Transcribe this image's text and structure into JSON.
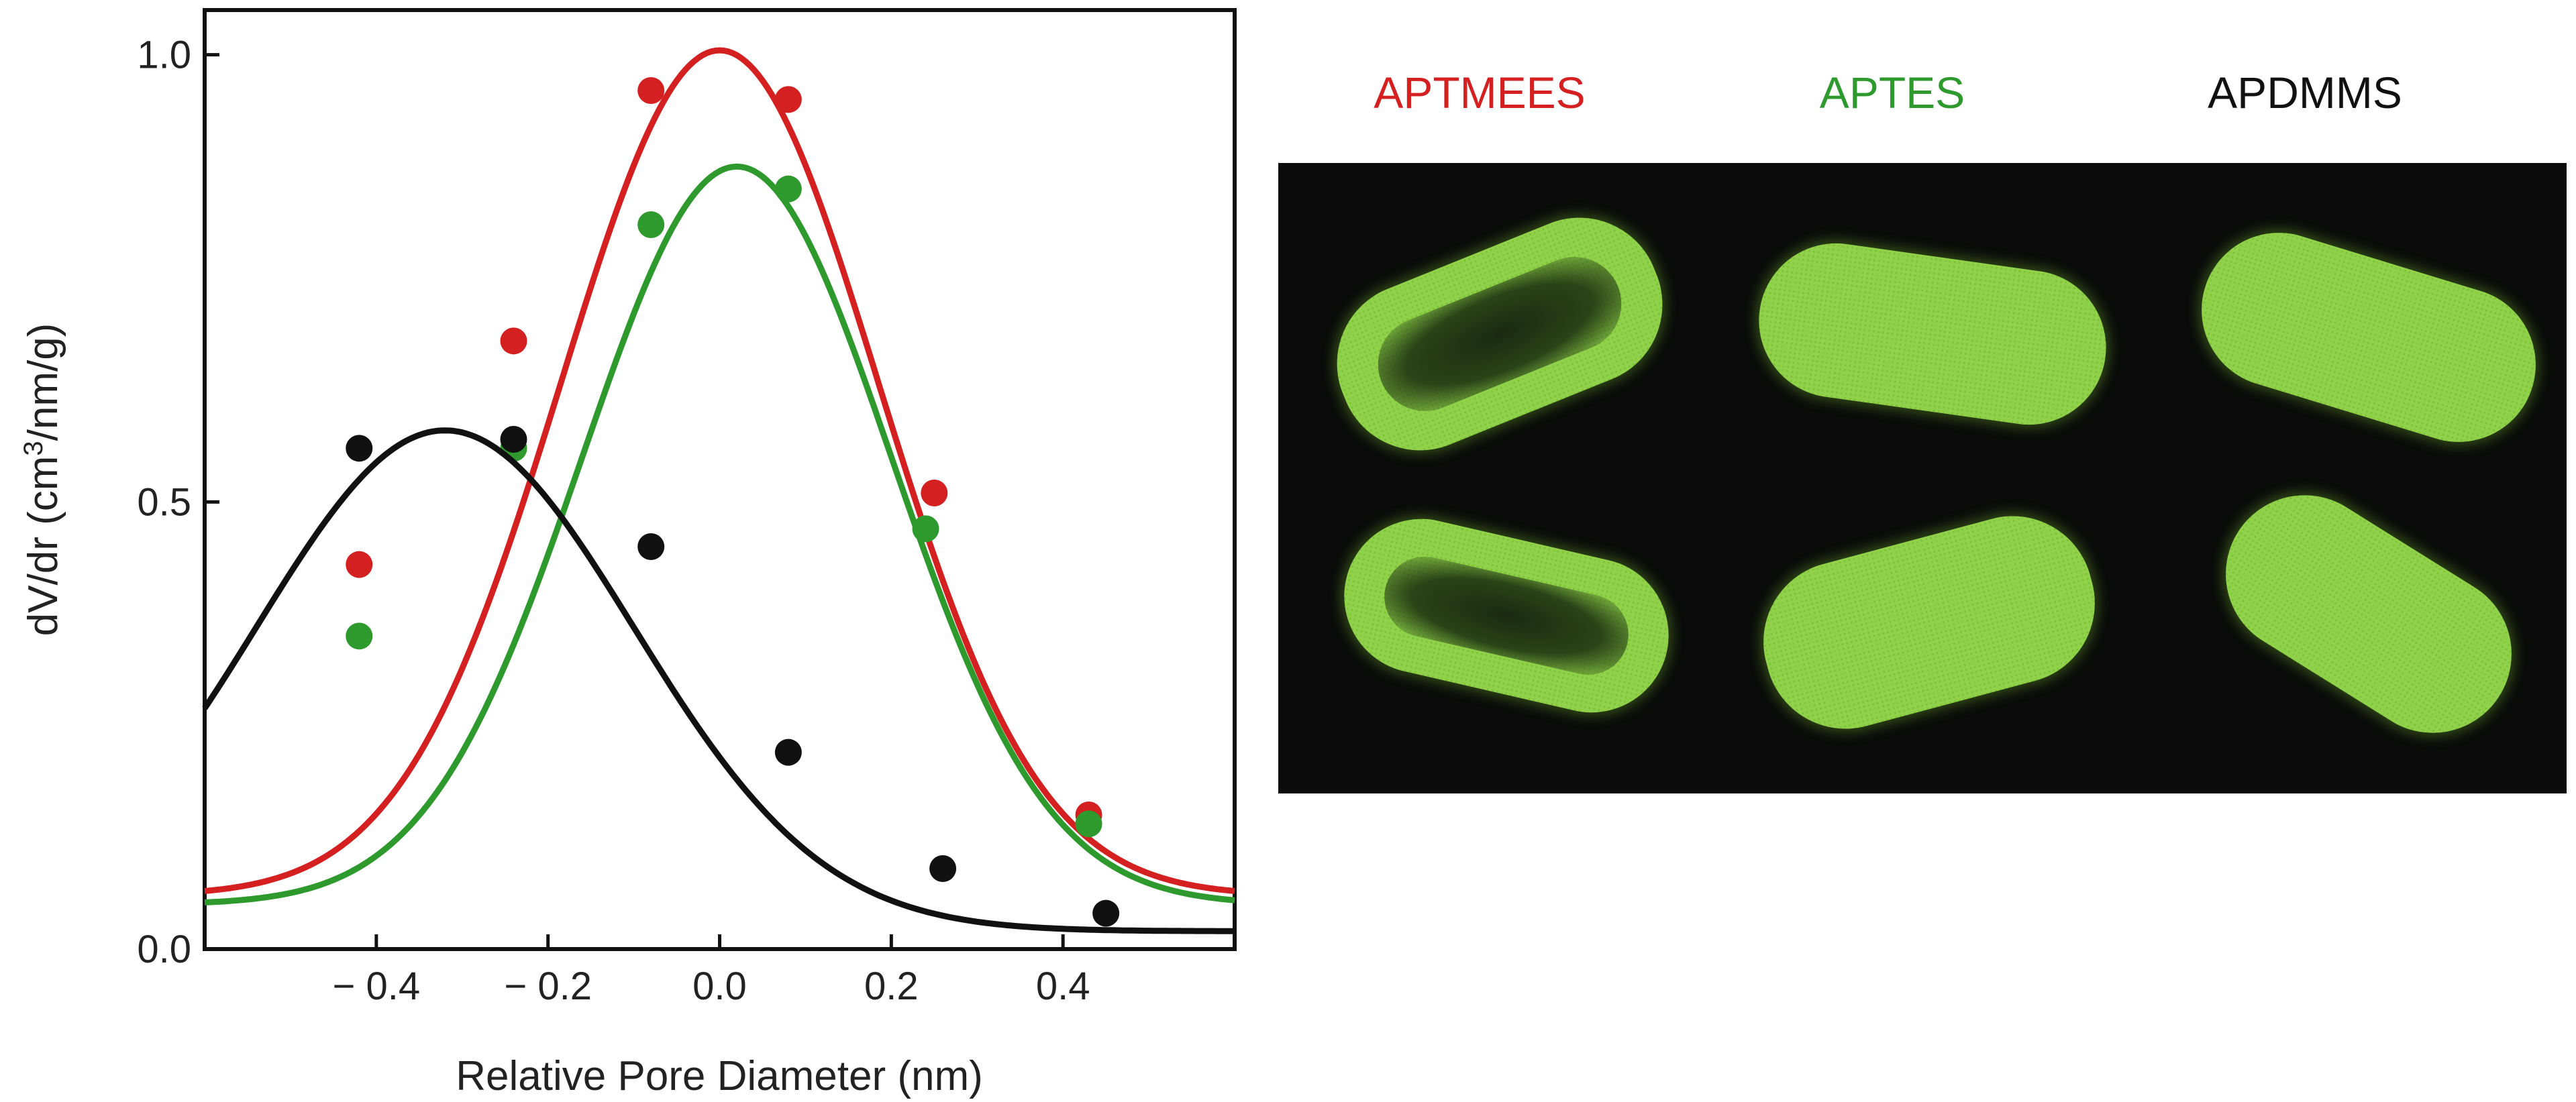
{
  "chart_data": {
    "type": "line",
    "xlabel": "Relative Pore Diameter (nm)",
    "ylabel_parts": [
      "dV/dr (cm",
      "3",
      "/nm/g)"
    ],
    "xlim": [
      -0.6,
      0.6
    ],
    "ylim": [
      0.0,
      1.05
    ],
    "x_ticks": [
      -0.4,
      -0.2,
      0.0,
      0.2,
      0.4
    ],
    "x_tick_labels": [
      "− 0.4",
      "− 0.2",
      "0.0",
      "0.2",
      "0.4"
    ],
    "y_ticks": [
      0.0,
      0.5,
      1.0
    ],
    "y_tick_labels": [
      "0.0",
      "0.5",
      "1.0"
    ],
    "series": [
      {
        "name": "APTMEES",
        "color": "#d42020",
        "curve": {
          "amp": 0.945,
          "mu": 0.0,
          "sigma": 0.185,
          "base": 0.06
        },
        "x": [
          -0.42,
          -0.24,
          -0.08,
          0.08,
          0.25,
          0.43
        ],
        "y": [
          0.43,
          0.68,
          0.96,
          0.95,
          0.51,
          0.15
        ]
      },
      {
        "name": "APTES",
        "color": "#2e9a2e",
        "curve": {
          "amp": 0.825,
          "mu": 0.02,
          "sigma": 0.18,
          "base": 0.05
        },
        "x": [
          -0.42,
          -0.24,
          -0.08,
          0.08,
          0.24,
          0.43
        ],
        "y": [
          0.35,
          0.56,
          0.81,
          0.85,
          0.47,
          0.14
        ]
      },
      {
        "name": "APDMMS",
        "color": "#111111",
        "curve": {
          "amp": 0.56,
          "mu": -0.32,
          "sigma": 0.22,
          "base": 0.02
        },
        "x": [
          -0.42,
          -0.24,
          -0.08,
          0.08,
          0.26,
          0.45
        ],
        "y": [
          0.56,
          0.57,
          0.45,
          0.22,
          0.09,
          0.04
        ]
      }
    ]
  },
  "panel_labels": [
    {
      "text": "APTMEES",
      "color": "#d42020"
    },
    {
      "text": "APTES",
      "color": "#2e9a2e"
    },
    {
      "text": "APDMMS",
      "color": "#111111"
    }
  ]
}
